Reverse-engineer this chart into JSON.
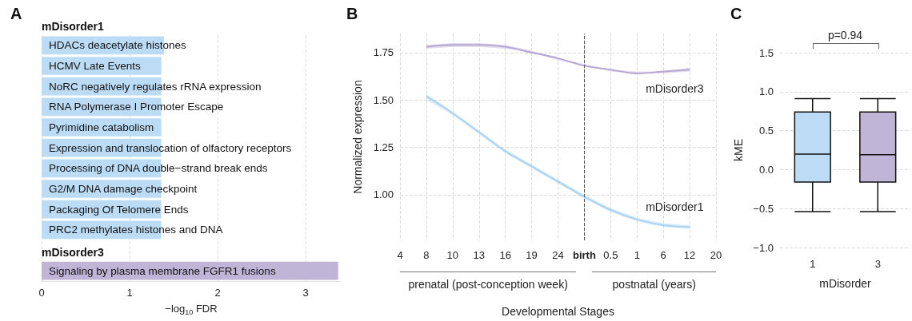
{
  "chart_data": [
    {
      "type": "bar",
      "title": "A",
      "orientation": "horizontal",
      "categories": [
        "HDACs deacetylate histones",
        "HCMV Late Events",
        "NoRC negatively regulates rRNA expression",
        "RNA Polymerase I Promoter Escape",
        "Pyrimidine catabolism",
        "Expression and translocation of olfactory receptors",
        "Processing of DNA double−strand break ends",
        "G2/M DNA damage checkpoint",
        "Packaging Of Telomere Ends",
        "PRC2 methylates histones and DNA",
        null,
        "Signaling by plasma membrane FGFR1 fusions"
      ],
      "series": [
        {
          "name": "mDisorder1",
          "color": "#bcdcf5",
          "values": [
            1.39,
            1.36,
            1.36,
            1.36,
            1.36,
            1.36,
            1.36,
            1.36,
            1.36,
            1.36,
            null,
            null
          ]
        },
        {
          "name": "mDisorder3",
          "color": "#c0b4d7",
          "values": [
            null,
            null,
            null,
            null,
            null,
            null,
            null,
            null,
            null,
            null,
            null,
            3.37
          ]
        }
      ],
      "xlim": [
        0,
        3.4
      ],
      "xticks": [
        0,
        1,
        2,
        3
      ],
      "xlabel": "−log$_{10}$ FDR",
      "grid": "x"
    },
    {
      "type": "line",
      "title": "B",
      "xlabel": "Developmental Stages",
      "ylabel": "Normalized expression",
      "annotations": [
        "prenatal (post-conception week)",
        "postnatal (years)"
      ],
      "categories": [
        "4",
        "8",
        "10",
        "13",
        "16",
        "19",
        "24",
        "birth",
        "0.5",
        "1",
        "6",
        "12",
        "20"
      ],
      "ylim": [
        0.76,
        1.85
      ],
      "yticks": [
        {
          "value": 1,
          "label": "1.00"
        },
        {
          "value": 1.25,
          "label": "1.25"
        },
        {
          "value": 1.5,
          "label": "1.50"
        },
        1.75
      ],
      "grid": true,
      "ref_lines": [
        {
          "axis": "x",
          "value": "birth",
          "color": "#555555",
          "line_style": "dashed"
        }
      ],
      "series": [
        {
          "name": "mDisorder3",
          "color": "#b6a7d3",
          "values": [
            null,
            1.78,
            1.79,
            1.79,
            1.78,
            1.75,
            1.72,
            1.68,
            1.66,
            1.64,
            1.65,
            1.66,
            null
          ],
          "lower": [
            null,
            1.77,
            1.78,
            1.78,
            1.77,
            1.75,
            1.71,
            1.68,
            1.65,
            1.64,
            1.64,
            1.65,
            null
          ],
          "upper": [
            null,
            1.79,
            1.8,
            1.8,
            1.79,
            1.76,
            1.72,
            1.69,
            1.66,
            1.65,
            1.65,
            1.67,
            null
          ]
        },
        {
          "name": "mDisorder1",
          "color": "#a9d3f3",
          "values": [
            null,
            1.52,
            1.43,
            1.33,
            1.23,
            1.15,
            1.07,
            0.99,
            0.92,
            0.87,
            0.84,
            0.83,
            null
          ],
          "lower": [
            null,
            1.5,
            1.42,
            1.32,
            1.22,
            1.14,
            1.06,
            0.98,
            0.91,
            0.86,
            0.83,
            0.82,
            null
          ],
          "upper": [
            null,
            1.53,
            1.44,
            1.34,
            1.24,
            1.16,
            1.08,
            1.0,
            0.93,
            0.88,
            0.85,
            0.84,
            null
          ]
        }
      ]
    },
    {
      "type": "box",
      "title": "C",
      "xlabel": "mDisorder",
      "ylabel": "kME",
      "annotations": [
        "p=0.94"
      ],
      "categories": [
        "1",
        "3"
      ],
      "colors": [
        "#bcdcf5",
        "#c0b4d7"
      ],
      "boxes": [
        {
          "low": -0.54,
          "q1": -0.16,
          "median": 0.2,
          "q3": 0.74,
          "high": 0.91
        },
        {
          "low": -0.54,
          "q1": -0.16,
          "median": 0.19,
          "q3": 0.74,
          "high": 0.91
        }
      ],
      "ylim": [
        -1,
        1.5
      ],
      "yticks": [
        {
          "value": -1,
          "label": "−1.0"
        },
        {
          "value": -0.5,
          "label": "−0.5"
        },
        {
          "value": 0,
          "label": "0.0"
        },
        0.5,
        {
          "value": 1,
          "label": "1.0"
        },
        1.5
      ],
      "grid": "y"
    }
  ]
}
